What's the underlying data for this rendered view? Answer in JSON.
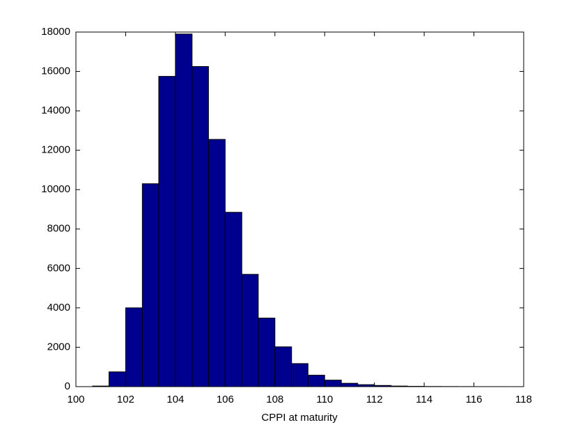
{
  "chart_data": {
    "type": "histogram",
    "xlabel": "CPPI at maturity",
    "bins": [
      100.67,
      101.33,
      102,
      102.67,
      103.33,
      104,
      104.67,
      105.33,
      106,
      106.67,
      107.33,
      108,
      108.67,
      109.33,
      110,
      110.67,
      111.33,
      112,
      112.67,
      113.33,
      114,
      114.67,
      115.33,
      116,
      116.67,
      117.33
    ],
    "values": [
      30,
      750,
      4000,
      10300,
      15750,
      17900,
      16250,
      12550,
      8850,
      5700,
      3480,
      2020,
      1170,
      580,
      330,
      170,
      100,
      60,
      30,
      15,
      8,
      5,
      3,
      1,
      1
    ],
    "color": "#00008f",
    "xlim": [
      100,
      118
    ],
    "xticks": [
      100,
      102,
      104,
      106,
      108,
      110,
      112,
      114,
      116,
      118
    ],
    "ylim": [
      0,
      18000
    ],
    "yticks": [
      0,
      2000,
      4000,
      6000,
      8000,
      10000,
      12000,
      14000,
      16000,
      18000
    ],
    "grid": false
  }
}
